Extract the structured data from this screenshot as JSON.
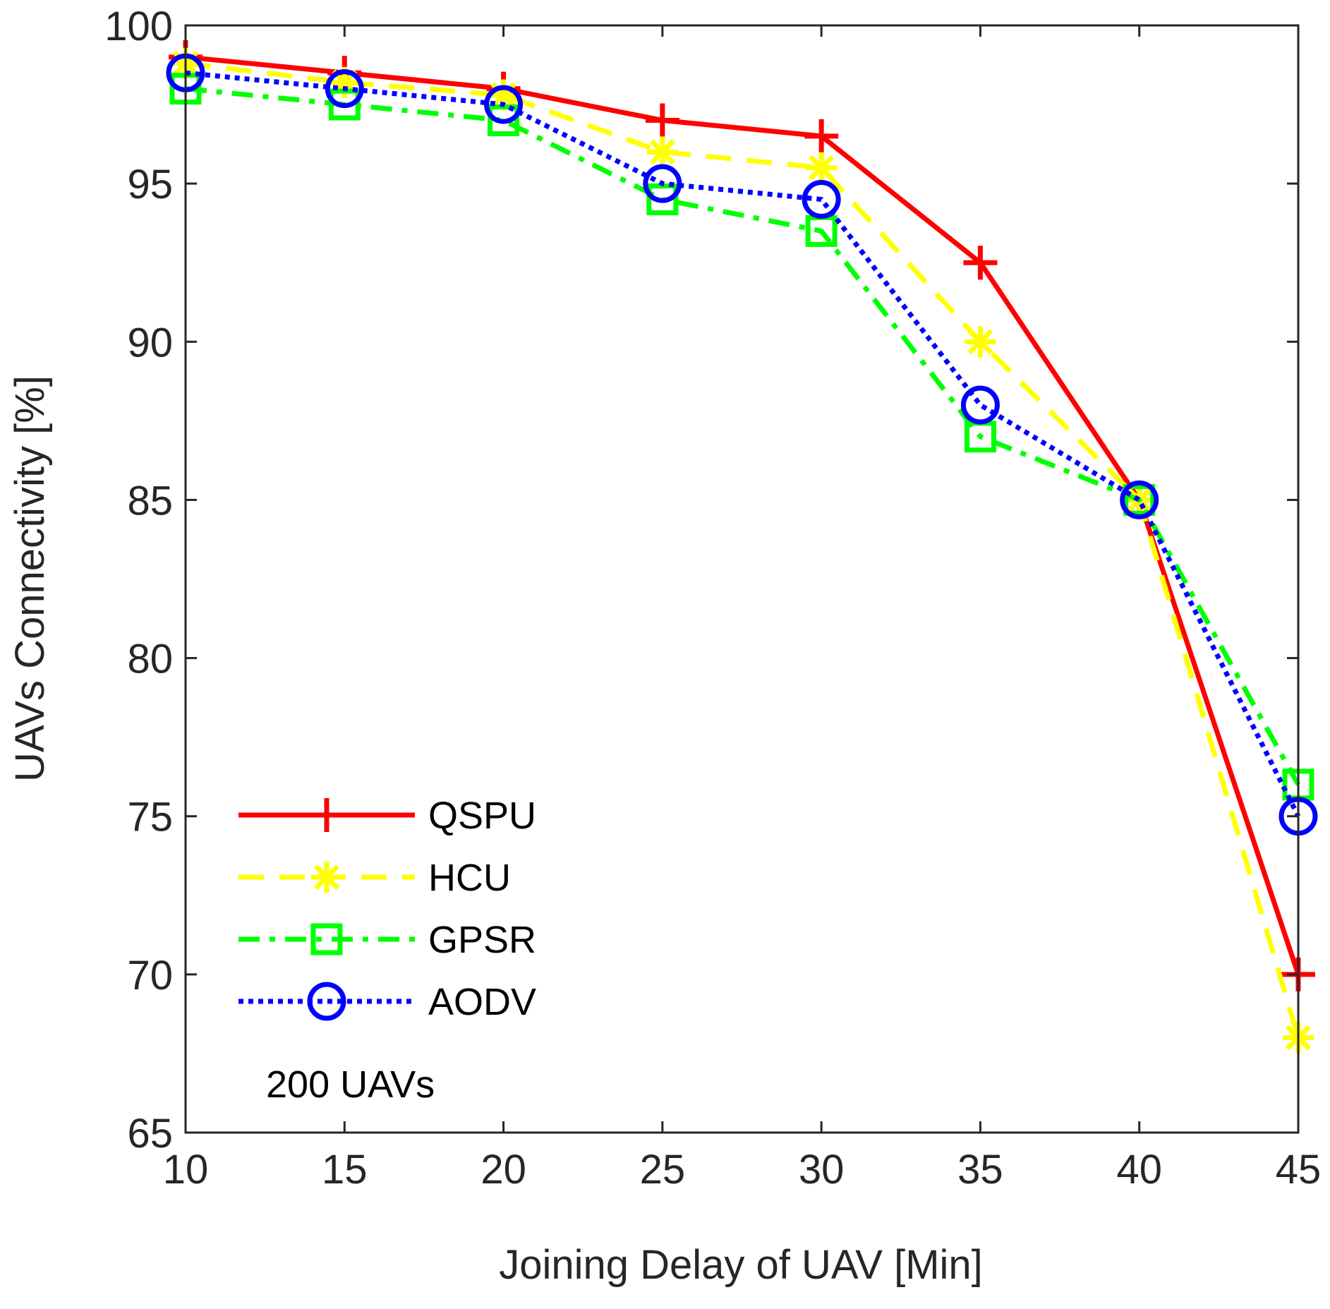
{
  "chart_data": {
    "type": "line",
    "title": "",
    "xlabel": "Joining Delay of UAV [Min]",
    "ylabel": "UAVs Connectivity [%]",
    "x": [
      10,
      15,
      20,
      25,
      30,
      35,
      40,
      45
    ],
    "xlim": [
      10,
      45
    ],
    "ylim": [
      65,
      100
    ],
    "xticks": [
      "10",
      "15",
      "20",
      "25",
      "30",
      "35",
      "40",
      "45"
    ],
    "yticks": [
      "65",
      "70",
      "75",
      "80",
      "85",
      "90",
      "95",
      "100"
    ],
    "grid": false,
    "legend_position": "bottom-left",
    "annotation": "200 UAVs",
    "series": [
      {
        "name": "QSPU",
        "color": "#ff0000",
        "marker": "plus",
        "linestyle": "solid",
        "values": [
          99,
          98.5,
          98,
          97,
          96.5,
          92.5,
          85,
          70
        ]
      },
      {
        "name": "HCU",
        "color": "#ffff00",
        "marker": "asterisk",
        "linestyle": "dashed",
        "values": [
          98.8,
          98.2,
          97.8,
          96,
          95.5,
          90,
          85,
          68
        ]
      },
      {
        "name": "GPSR",
        "color": "#00ff00",
        "marker": "square",
        "linestyle": "dashdot",
        "values": [
          98,
          97.5,
          97,
          94.5,
          93.5,
          87,
          85,
          76
        ]
      },
      {
        "name": "AODV",
        "color": "#0000ff",
        "marker": "circle",
        "linestyle": "dotted",
        "values": [
          98.5,
          98,
          97.5,
          95,
          94.5,
          88,
          85,
          75
        ]
      }
    ]
  }
}
